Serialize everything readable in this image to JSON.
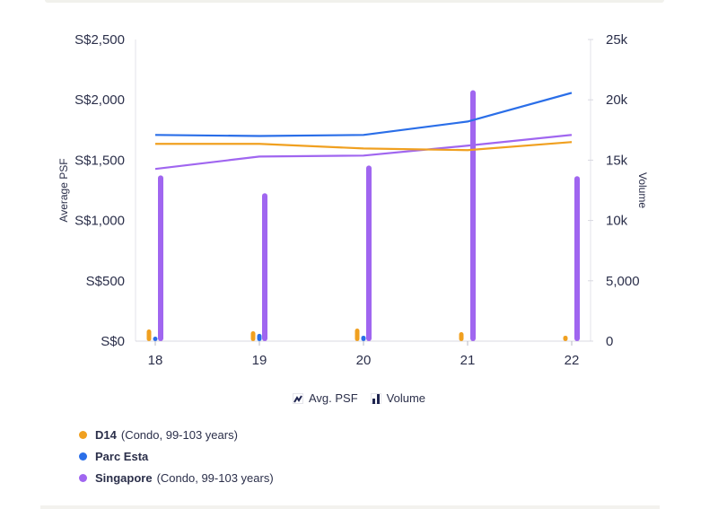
{
  "chart_data": {
    "type": "bar+line",
    "categories": [
      "18",
      "19",
      "20",
      "21",
      "22"
    ],
    "left_axis": {
      "title": "Average PSF",
      "ticks": [
        "S$0",
        "S$500",
        "S$1,000",
        "S$1,500",
        "S$2,000",
        "S$2,500"
      ],
      "range": [
        0,
        2500
      ]
    },
    "right_axis": {
      "title": "Volume",
      "ticks": [
        "0",
        "5,000",
        "10k",
        "15k",
        "20k",
        "25k"
      ],
      "range": [
        0,
        25000
      ]
    },
    "series": [
      {
        "name": "D14",
        "detail": "(Condo, 99-103 years)",
        "color": "#f0a020",
        "psf": [
          1635,
          1635,
          1597,
          1583,
          1650
        ],
        "volume": [
          970,
          820,
          1040,
          740,
          450
        ]
      },
      {
        "name": "Parc Esta",
        "detail": "",
        "color": "#2a6ee8",
        "psf": [
          1709,
          1700,
          1709,
          1820,
          2058
        ],
        "volume": [
          370,
          600,
          450,
          0,
          0
        ]
      },
      {
        "name": "Singapore",
        "detail": "(Condo, 99-103 years)",
        "color": "#a066f0",
        "psf": [
          1427,
          1530,
          1538,
          1620,
          1709
        ],
        "volume": [
          13740,
          12260,
          14560,
          20800,
          13670
        ]
      }
    ],
    "legend": {
      "avg_psf": "Avg. PSF",
      "volume": "Volume"
    },
    "grid": false
  }
}
